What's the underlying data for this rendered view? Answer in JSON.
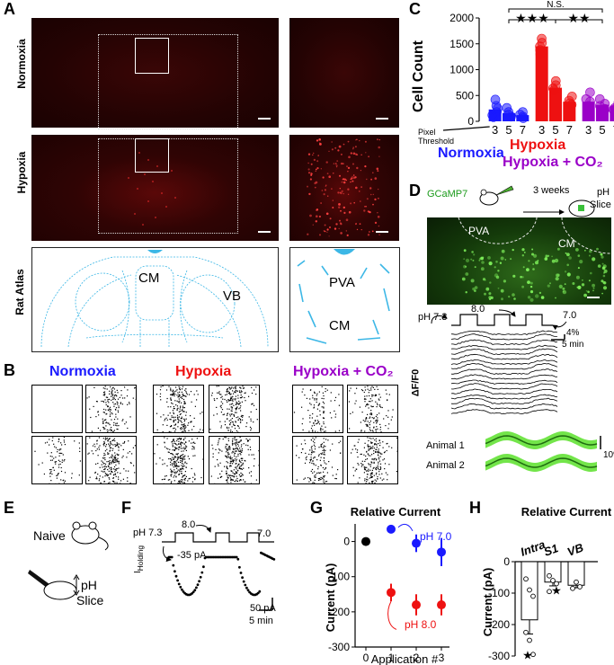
{
  "panels": {
    "A": "A",
    "B": "B",
    "C": "C",
    "D": "D",
    "E": "E",
    "F": "F",
    "G": "G",
    "H": "H"
  },
  "panel_a": {
    "rows": [
      "Normoxia",
      "Hypoxia",
      "Rat Atlas"
    ],
    "atlas_labels": {
      "cm": "CM",
      "vb": "VB",
      "pva": "PVA",
      "cm_zoom": "CM"
    }
  },
  "panel_b": {
    "groups": [
      "Normoxia",
      "Hypoxia",
      "Hypoxia + CO₂"
    ],
    "colors": {
      "normoxia": "#1a1aff",
      "hypoxia": "#ee1111",
      "hypoxia_co2": "#9a00c8"
    }
  },
  "chart_data": [
    {
      "panel": "C",
      "type": "scatter",
      "ylabel": "Cell Count",
      "ylim": [
        0,
        2000
      ],
      "yticks": [
        0,
        500,
        1000,
        1500,
        2000
      ],
      "xlabel_note": [
        "Pixel",
        "Threshold"
      ],
      "categories": [
        "3",
        "5",
        "7",
        "3",
        "5",
        "7",
        "3",
        "5",
        "7"
      ],
      "groups": [
        "Normoxia",
        "Hypoxia",
        "Hypoxia + CO₂"
      ],
      "series": [
        {
          "name": "Normoxia",
          "color": "#1a1aff",
          "bar_values": [
            230,
            160,
            120
          ],
          "points": [
            [
              0,
              420
            ],
            [
              0,
              300
            ],
            [
              0,
              250
            ],
            [
              0,
              180
            ],
            [
              0,
              120
            ],
            [
              0,
              80
            ],
            [
              1,
              260
            ],
            [
              1,
              180
            ],
            [
              1,
              130
            ],
            [
              1,
              90
            ],
            [
              2,
              180
            ],
            [
              2,
              130
            ],
            [
              2,
              90
            ],
            [
              2,
              60
            ]
          ]
        },
        {
          "name": "Hypoxia",
          "color": "#ee1111",
          "bar_values": [
            1450,
            650,
            380
          ],
          "points": [
            [
              3,
              1600
            ],
            [
              3,
              1520
            ],
            [
              3,
              1450
            ],
            [
              3,
              1380
            ],
            [
              3,
              1300
            ],
            [
              4,
              780
            ],
            [
              4,
              700
            ],
            [
              4,
              640
            ],
            [
              4,
              600
            ],
            [
              5,
              480
            ],
            [
              5,
              400
            ],
            [
              5,
              350
            ],
            [
              5,
              320
            ]
          ]
        },
        {
          "name": "Hypoxia + CO₂",
          "color": "#9a00c8",
          "bar_values": [
            380,
            320,
            300
          ],
          "points": [
            [
              6,
              560
            ],
            [
              6,
              430
            ],
            [
              6,
              380
            ],
            [
              6,
              300
            ],
            [
              7,
              430
            ],
            [
              7,
              340
            ],
            [
              7,
              300
            ],
            [
              7,
              240
            ],
            [
              8,
              360
            ],
            [
              8,
              300
            ],
            [
              8,
              260
            ],
            [
              8,
              220
            ]
          ]
        }
      ],
      "significance": [
        "N.S.",
        "★★★",
        "★★"
      ]
    },
    {
      "panel": "G",
      "type": "scatter",
      "title": "Relative Current",
      "xlabel": "Application #",
      "ylabel": "Current (pA)",
      "ylim": [
        -300,
        50
      ],
      "yticks": [
        0,
        -100,
        -200,
        -300
      ],
      "xticks": [
        0,
        1,
        2,
        3
      ],
      "series": [
        {
          "name": "pH 7.0",
          "color": "#1a1aff",
          "x": [
            1,
            2,
            3
          ],
          "y": [
            35,
            -5,
            -30
          ],
          "err": [
            10,
            25,
            40
          ]
        },
        {
          "name": "pH 8.0",
          "color": "#ee1111",
          "x": [
            1,
            2,
            3
          ],
          "y": [
            -145,
            -180,
            -180
          ],
          "err": [
            25,
            30,
            30
          ]
        },
        {
          "name": "",
          "color": "#000000",
          "x": [
            0
          ],
          "y": [
            0
          ],
          "err": [
            0
          ]
        }
      ]
    },
    {
      "panel": "H",
      "type": "bar",
      "title": "Relative Current",
      "ylabel": "Current (pA)",
      "ylim": [
        -300,
        0
      ],
      "yticks": [
        0,
        -100,
        -200,
        -300
      ],
      "categories": [
        "Intra",
        "S1",
        "VB"
      ],
      "values": [
        -185,
        -65,
        -75
      ],
      "err": [
        45,
        12,
        8
      ],
      "points": [
        [
          0,
          -55
        ],
        [
          0,
          -90
        ],
        [
          0,
          -110
        ],
        [
          0,
          -225
        ],
        [
          0,
          -250
        ],
        [
          0,
          -295
        ],
        [
          1,
          -45
        ],
        [
          1,
          -60
        ],
        [
          1,
          -70
        ],
        [
          1,
          -95
        ],
        [
          2,
          -65
        ],
        [
          2,
          -80
        ],
        [
          2,
          -85
        ]
      ]
    }
  ],
  "panel_d": {
    "gcamp": "GCaMP7",
    "weeks": "3 weeks",
    "ph": "pH",
    "slice": "Slice",
    "pva": "PVA",
    "cm": "CM",
    "ph_start": "pH 7.3",
    "ph_high": "8.0",
    "ph_low": "7.0",
    "time_scale": "5 min",
    "df_scale": "4%",
    "ylabel": "ΔF/F0",
    "animal1": "Animal 1",
    "animal2": "Animal 2",
    "anim_scale": "10%"
  },
  "panel_e": {
    "naive": "Naive",
    "ph": "pH",
    "slice": "Slice"
  },
  "panel_f": {
    "ph_start": "pH 7.3",
    "ph_high": "8.0",
    "ph_low": "7.0",
    "holding_value": "-35 pA",
    "ylabel": "I",
    "ylabel_sub": "Holding",
    "current_scale": "50 pA",
    "time_scale": "5 min"
  },
  "panel_g_labels": {
    "ph70": "pH 7.0",
    "ph80": "pH 8.0"
  }
}
